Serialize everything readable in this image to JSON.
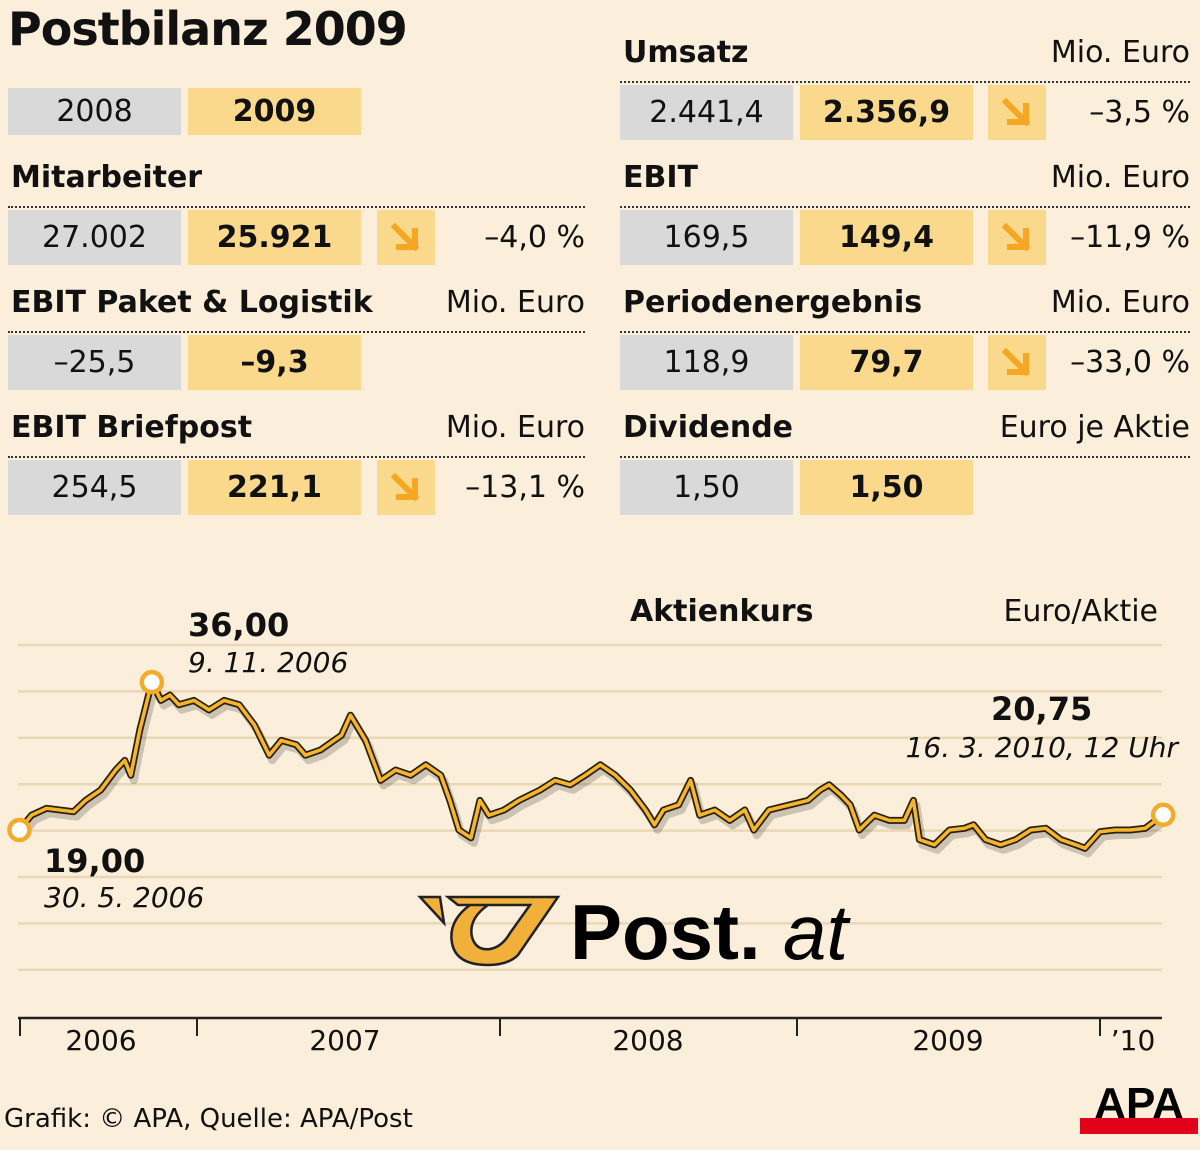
{
  "title": "Postbilanz 2009",
  "years": {
    "prev": "2008",
    "curr": "2009"
  },
  "colors": {
    "background": "#fbeedb",
    "prev_box": "#d9d9d9",
    "curr_box": "#fbd98c",
    "arrow": "#f5a623",
    "line": "#f7b52c",
    "apa_red": "#e3001b"
  },
  "metrics_left": [
    {
      "label": "Mitarbeiter",
      "unit": "",
      "prev": "27.002",
      "curr": "25.921",
      "trend_icon": "arrow-down-right-icon",
      "change": "–4,0 %"
    },
    {
      "label": "EBIT Paket & Logistik",
      "unit": "Mio. Euro",
      "prev": "–25,5",
      "curr": "–9,3",
      "trend_icon": "",
      "change": ""
    },
    {
      "label": "EBIT Briefpost",
      "unit": "Mio. Euro",
      "prev": "254,5",
      "curr": "221,1",
      "trend_icon": "arrow-down-right-icon",
      "change": "–13,1 %"
    }
  ],
  "metrics_right": [
    {
      "label": "Umsatz",
      "unit": "Mio. Euro",
      "prev": "2.441,4",
      "curr": "2.356,9",
      "trend_icon": "arrow-down-right-icon",
      "change": "–3,5 %"
    },
    {
      "label": "EBIT",
      "unit": "Mio. Euro",
      "prev": "169,5",
      "curr": "149,4",
      "trend_icon": "arrow-down-right-icon",
      "change": "–11,9 %"
    },
    {
      "label": "Periodenergebnis",
      "unit": "Mio. Euro",
      "prev": "118,9",
      "curr": "79,7",
      "trend_icon": "arrow-down-right-icon",
      "change": "–33,0 %"
    },
    {
      "label": "Dividende",
      "unit": "Euro je Aktie",
      "prev": "1,50",
      "curr": "1,50",
      "trend_icon": "",
      "change": ""
    }
  ],
  "chart_data": {
    "type": "line",
    "title": "Aktienkurs",
    "ylabel": "Euro/Aktie",
    "xlabel": "",
    "x_tick_labels": [
      "2006",
      "2007",
      "2008",
      "2009",
      "’10"
    ],
    "ylim": [
      3,
      40.3
    ],
    "grid": true,
    "annotations": [
      {
        "value": "36,00",
        "date": "9. 11. 2006",
        "x": 2006.85,
        "y": 36.0
      },
      {
        "value": "19,00",
        "date": "30. 5. 2006",
        "x": 2006.41,
        "y": 19.0
      },
      {
        "value": "20,75",
        "date": "16. 3. 2010, 12 Uhr",
        "x": 2010.21,
        "y": 20.75
      }
    ],
    "series": [
      {
        "name": "Aktienkurs",
        "x": [
          2006.41,
          2006.45,
          2006.5,
          2006.59,
          2006.63,
          2006.68,
          2006.73,
          2006.76,
          2006.78,
          2006.81,
          2006.85,
          2006.88,
          2006.91,
          2006.94,
          2006.99,
          2007.04,
          2007.09,
          2007.14,
          2007.19,
          2007.24,
          2007.28,
          2007.33,
          2007.36,
          2007.41,
          2007.48,
          2007.51,
          2007.56,
          2007.61,
          2007.66,
          2007.71,
          2007.76,
          2007.81,
          2007.84,
          2007.87,
          2007.91,
          2007.94,
          2007.97,
          2008.02,
          2008.07,
          2008.14,
          2008.19,
          2008.24,
          2008.29,
          2008.34,
          2008.39,
          2008.44,
          2008.49,
          2008.52,
          2008.55,
          2008.6,
          2008.64,
          2008.67,
          2008.72,
          2008.77,
          2008.82,
          2008.85,
          2008.9,
          2008.97,
          2009.03,
          2009.07,
          2009.1,
          2009.14,
          2009.17,
          2009.2,
          2009.25,
          2009.3,
          2009.35,
          2009.38,
          2009.4,
          2009.45,
          2009.5,
          2009.55,
          2009.58,
          2009.62,
          2009.67,
          2009.72,
          2009.77,
          2009.82,
          2009.87,
          2009.92,
          2009.95,
          2010.0,
          2010.05,
          2010.1,
          2010.15,
          2010.21
        ],
        "y": [
          19.0,
          20.7,
          21.5,
          21.1,
          22.4,
          23.6,
          25.9,
          27.0,
          25.3,
          30.5,
          36.0,
          33.9,
          34.5,
          33.4,
          33.9,
          32.8,
          33.9,
          33.4,
          31.1,
          27.6,
          29.3,
          28.8,
          27.6,
          28.2,
          29.9,
          32.2,
          29.3,
          24.7,
          25.9,
          25.3,
          26.5,
          25.3,
          22.4,
          19.0,
          18.1,
          22.4,
          20.7,
          21.3,
          22.4,
          23.6,
          24.7,
          24.2,
          25.3,
          26.5,
          25.3,
          23.6,
          21.3,
          19.6,
          21.3,
          21.9,
          24.7,
          20.7,
          21.3,
          20.1,
          21.3,
          19.0,
          21.3,
          21.9,
          22.4,
          23.6,
          24.2,
          23.0,
          21.9,
          19.0,
          20.7,
          20.1,
          20.1,
          22.4,
          17.9,
          17.3,
          19.0,
          19.2,
          19.6,
          17.9,
          17.3,
          17.9,
          19.0,
          19.2,
          17.9,
          17.3,
          16.9,
          18.8,
          19.0,
          19.0,
          19.2,
          20.75
        ]
      }
    ]
  },
  "logo": {
    "text_bold": "Post.",
    "text_italic": "at"
  },
  "source": "Grafik: © APA, Quelle: APA/Post",
  "apa_logo": "APA"
}
